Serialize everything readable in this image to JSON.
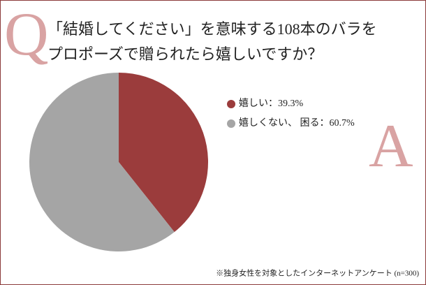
{
  "chart_data": {
    "type": "pie",
    "q_mark": "Q",
    "a_mark": "A",
    "title": [
      "「結婚してください」を意味する108本のバラを",
      "プロポーズで贈られたら嬉しいですか？"
    ],
    "categories": [
      "嬉しい：39.3%",
      "嬉しくない、 困る：60.7%"
    ],
    "values": [
      39.3,
      60.7
    ],
    "colors": [
      "#9b3c3c",
      "#a5a5a5"
    ],
    "note": "※独身女性を対象としたインターネットアンケート (n=300)"
  }
}
